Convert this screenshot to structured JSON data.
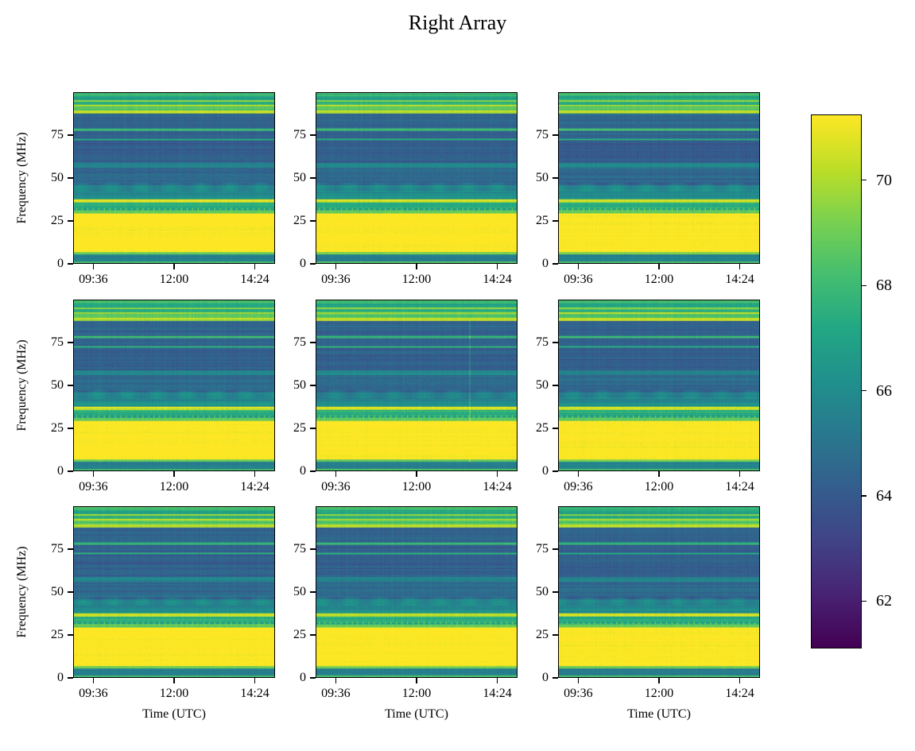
{
  "chart_data": {
    "type": "heatmap",
    "title": "Right Array",
    "layout": "3x3 grid of spectrograms sharing one colorbar",
    "xlabel": "Time (UTC)",
    "ylabel": "Frequency (MHz)",
    "x_ticks": [
      "09:36",
      "12:00",
      "14:24"
    ],
    "x_tick_minutes": [
      576,
      720,
      864
    ],
    "x_range_minutes": [
      540,
      900
    ],
    "y_ticks": [
      0,
      25,
      50,
      75
    ],
    "ylim": [
      0,
      100
    ],
    "colormap": "viridis",
    "colorbar": {
      "ticks": [
        62,
        64,
        66,
        68,
        70
      ],
      "range": [
        61.1,
        71.25
      ]
    },
    "frequency_profile": [
      {
        "f0": 0,
        "f1": 1,
        "v": 68.5
      },
      {
        "f0": 1,
        "f1": 5,
        "v": 65.5
      },
      {
        "f0": 5,
        "f1": 6.5,
        "v": 69.0
      },
      {
        "f0": 6.5,
        "f1": 29,
        "v": 71.5
      },
      {
        "f0": 29,
        "f1": 31,
        "v": 68.8
      },
      {
        "f0": 31,
        "f1": 32.5,
        "v": 67.0
      },
      {
        "f0": 32.5,
        "f1": 35.5,
        "v": 67.5
      },
      {
        "f0": 35.5,
        "f1": 37.5,
        "v": 70.5
      },
      {
        "f0": 37.5,
        "f1": 40,
        "v": 66.2
      },
      {
        "f0": 40,
        "f1": 46,
        "v": 65.8
      },
      {
        "f0": 46,
        "f1": 56,
        "v": 64.6
      },
      {
        "f0": 56,
        "f1": 59,
        "v": 65.8
      },
      {
        "f0": 59,
        "f1": 72,
        "v": 64.2
      },
      {
        "f0": 72,
        "f1": 73,
        "v": 67.5
      },
      {
        "f0": 73,
        "f1": 78,
        "v": 64.3
      },
      {
        "f0": 78,
        "f1": 79,
        "v": 67.8
      },
      {
        "f0": 79,
        "f1": 88,
        "v": 64.4
      },
      {
        "f0": 88,
        "f1": 90,
        "v": 70.2
      },
      {
        "f0": 90,
        "f1": 92,
        "v": 68.5
      },
      {
        "f0": 92,
        "f1": 93,
        "v": 70.0
      },
      {
        "f0": 93,
        "f1": 95,
        "v": 67.5
      },
      {
        "f0": 95,
        "f1": 96,
        "v": 69.5
      },
      {
        "f0": 96,
        "f1": 98,
        "v": 67.0
      },
      {
        "f0": 98,
        "f1": 100,
        "v": 68.0
      }
    ],
    "panels": [
      {
        "row": 0,
        "col": 0,
        "show_ylabel": true,
        "show_xlabel": false
      },
      {
        "row": 0,
        "col": 1,
        "show_ylabel": false,
        "show_xlabel": false
      },
      {
        "row": 0,
        "col": 2,
        "show_ylabel": false,
        "show_xlabel": false
      },
      {
        "row": 1,
        "col": 0,
        "show_ylabel": true,
        "show_xlabel": false
      },
      {
        "row": 1,
        "col": 1,
        "show_ylabel": false,
        "show_xlabel": false,
        "transient_spike_minute": 815
      },
      {
        "row": 1,
        "col": 2,
        "show_ylabel": false,
        "show_xlabel": false
      },
      {
        "row": 2,
        "col": 0,
        "show_ylabel": true,
        "show_xlabel": true
      },
      {
        "row": 2,
        "col": 1,
        "show_ylabel": false,
        "show_xlabel": true
      },
      {
        "row": 2,
        "col": 2,
        "show_ylabel": false,
        "show_xlabel": true
      }
    ]
  }
}
